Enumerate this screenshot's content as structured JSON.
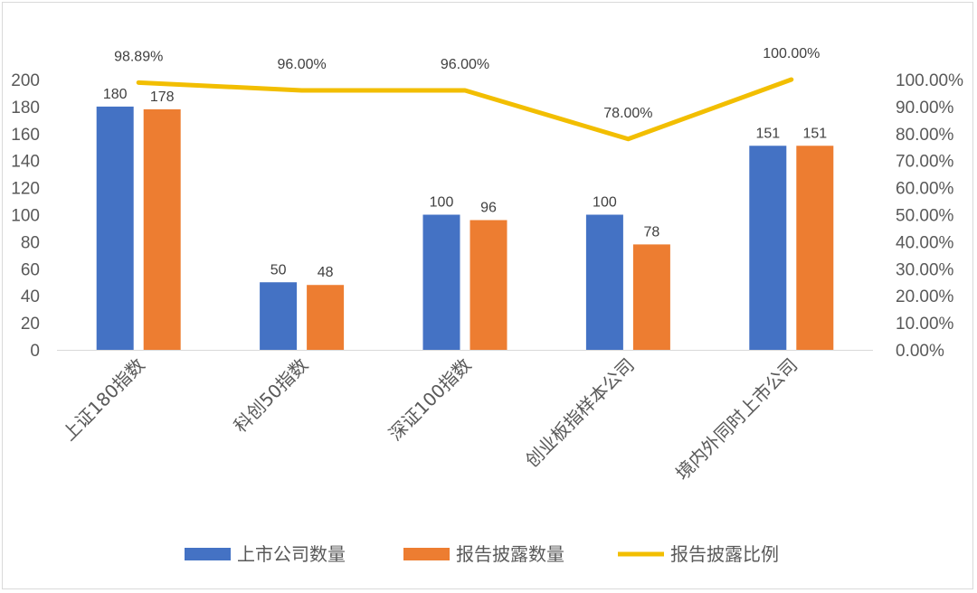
{
  "chart_data": {
    "type": "bar",
    "categories": [
      "上证180指数",
      "科创50指数",
      "深证100指数",
      "创业板指样本公司",
      "境内外同时上市公司"
    ],
    "series": [
      {
        "name": "上市公司数量",
        "kind": "bar",
        "axis": "left",
        "values": [
          180,
          50,
          100,
          100,
          151
        ],
        "labels": [
          "180",
          "50",
          "100",
          "100",
          "151"
        ],
        "color": "#4472C4"
      },
      {
        "name": "报告披露数量",
        "kind": "bar",
        "axis": "left",
        "values": [
          178,
          48,
          96,
          78,
          151
        ],
        "labels": [
          "178",
          "48",
          "96",
          "78",
          "151"
        ],
        "color": "#ED7D31"
      },
      {
        "name": "报告披露比例",
        "kind": "line",
        "axis": "right",
        "values": [
          98.89,
          96.0,
          96.0,
          78.0,
          100.0
        ],
        "labels": [
          "98.89%",
          "96.00%",
          "96.00%",
          "78.00%",
          "100.00%"
        ],
        "color": "#F2BE00"
      }
    ],
    "ylim_left": [
      0,
      200
    ],
    "yticks_left": [
      "0",
      "20",
      "40",
      "60",
      "80",
      "100",
      "120",
      "140",
      "160",
      "180",
      "200"
    ],
    "ylim_right": [
      0,
      100
    ],
    "yticks_right": [
      "0.00%",
      "10.00%",
      "20.00%",
      "30.00%",
      "40.00%",
      "50.00%",
      "60.00%",
      "70.00%",
      "80.00%",
      "90.00%",
      "100.00%"
    ],
    "grid": false,
    "legend_position": "bottom"
  }
}
